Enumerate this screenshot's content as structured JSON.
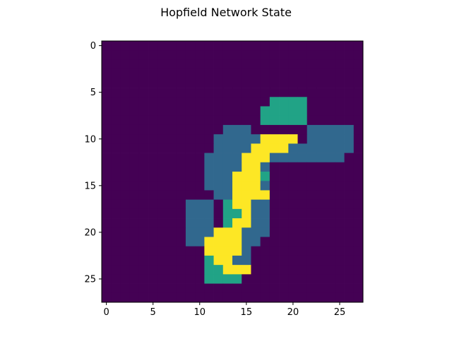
{
  "chart_data": {
    "type": "heatmap",
    "title": "Hopfield Network State",
    "xlabel": "",
    "ylabel": "",
    "grid": false,
    "legend": "none",
    "xlim": [
      -0.5,
      27.5
    ],
    "ylim": [
      27.5,
      -0.5
    ],
    "x_ticks": [
      0,
      5,
      10,
      15,
      20,
      25
    ],
    "y_ticks": [
      0,
      5,
      10,
      15,
      20,
      25
    ],
    "x_tick_labels": [
      "0",
      "5",
      "10",
      "15",
      "20",
      "25"
    ],
    "y_tick_labels": [
      "0",
      "5",
      "10",
      "15",
      "20",
      "25"
    ],
    "rows": 28,
    "cols": 28,
    "value_colors": {
      "0": "#440154",
      "1": "#31688e",
      "2": "#21a386",
      "3": "#fde725"
    },
    "cells": [
      "0000000000000000000000000000",
      "0000000000000000000000000000",
      "0000000000000000000000000000",
      "0000000000000000000000000000",
      "0000000000000000000000000000",
      "0000000000000000000000000000",
      "0000000000000000002222000000",
      "0000000000000000022222000000",
      "0000000000000000022222000000",
      "0000000000000111000000111110",
      "0000000000001111133330111110",
      "0000000000001111333311111110",
      "0000000000011113331111111100",
      "0000000000011113310000000000",
      "0000000000011133320000000000",
      "0000000000011133310000000000",
      "0000000000001133330000000000",
      "0000000001110233110000000000",
      "0000000001110223110000000000",
      "0000000001110233110000000000",
      "0000000001113331110000000000",
      "0000000001133331100000000000",
      "0000000000033331000000000000",
      "0000000000023311000000000000",
      "0000000000022333000000000000",
      "0000000000022220000000000000",
      "0000000000000000000000000000",
      "0000000000000000000000000000"
    ]
  }
}
